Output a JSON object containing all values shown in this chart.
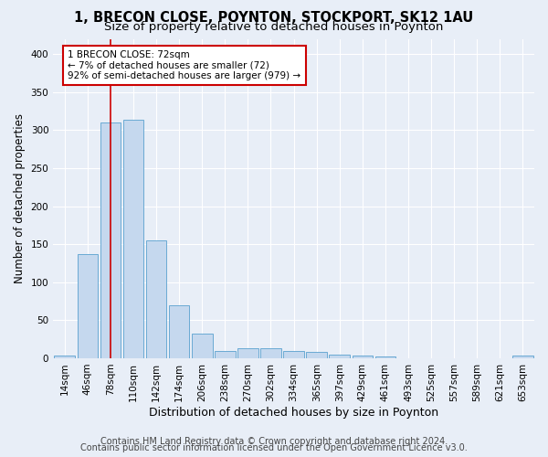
{
  "title_line1": "1, BRECON CLOSE, POYNTON, STOCKPORT, SK12 1AU",
  "title_line2": "Size of property relative to detached houses in Poynton",
  "xlabel": "Distribution of detached houses by size in Poynton",
  "ylabel": "Number of detached properties",
  "bar_labels": [
    "14sqm",
    "46sqm",
    "78sqm",
    "110sqm",
    "142sqm",
    "174sqm",
    "206sqm",
    "238sqm",
    "270sqm",
    "302sqm",
    "334sqm",
    "365sqm",
    "397sqm",
    "429sqm",
    "461sqm",
    "493sqm",
    "525sqm",
    "557sqm",
    "589sqm",
    "621sqm",
    "653sqm"
  ],
  "bar_values": [
    4,
    137,
    310,
    314,
    155,
    70,
    32,
    10,
    13,
    13,
    10,
    8,
    5,
    3,
    2,
    0,
    0,
    0,
    0,
    0,
    3
  ],
  "bar_color": "#c5d8ee",
  "bar_edge_color": "#6aaad4",
  "marker_index": 2,
  "marker_color": "#cc0000",
  "ylim": [
    0,
    420
  ],
  "yticks": [
    0,
    50,
    100,
    150,
    200,
    250,
    300,
    350,
    400
  ],
  "annotation_text": "1 BRECON CLOSE: 72sqm\n← 7% of detached houses are smaller (72)\n92% of semi-detached houses are larger (979) →",
  "annotation_box_color": "#ffffff",
  "annotation_border_color": "#cc0000",
  "footer_line1": "Contains HM Land Registry data © Crown copyright and database right 2024.",
  "footer_line2": "Contains public sector information licensed under the Open Government Licence v3.0.",
  "background_color": "#e8eef7",
  "plot_background_color": "#e8eef7",
  "grid_color": "#ffffff",
  "title_fontsize": 10.5,
  "subtitle_fontsize": 9.5,
  "tick_fontsize": 7.5,
  "ylabel_fontsize": 8.5,
  "xlabel_fontsize": 9,
  "footer_fontsize": 7
}
